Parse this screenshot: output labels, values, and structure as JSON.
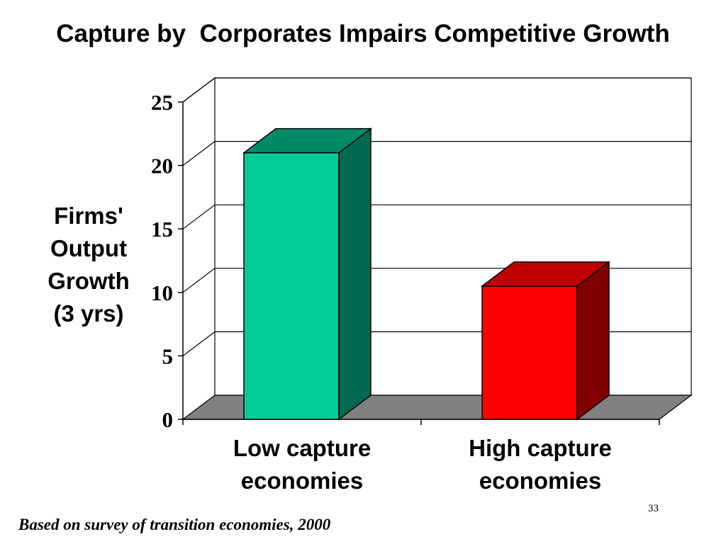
{
  "slide": {
    "title": "Capture by  Corporates Impairs Competitive Growth",
    "footnote": "Based on survey of transition economies, 2000",
    "slide_number": "33"
  },
  "chart_data": {
    "type": "bar",
    "three_d": true,
    "title": "",
    "ylabel_lines": [
      "Firms'",
      "Output",
      "Growth",
      "(3 yrs)"
    ],
    "xlabel": "",
    "categories": [
      [
        "Low capture",
        "economies"
      ],
      [
        "High capture",
        "economies"
      ]
    ],
    "values": [
      21,
      10.5
    ],
    "ylim": [
      0,
      25
    ],
    "yticks": [
      0,
      5,
      10,
      15,
      20,
      25
    ],
    "grid": true,
    "legend": "none",
    "bar_colors": [
      {
        "front": "#00CC99",
        "side": "#006A50",
        "top": "#008A66"
      },
      {
        "front": "#FF0000",
        "side": "#800000",
        "top": "#C00000"
      }
    ],
    "floor_color": "#808080"
  }
}
